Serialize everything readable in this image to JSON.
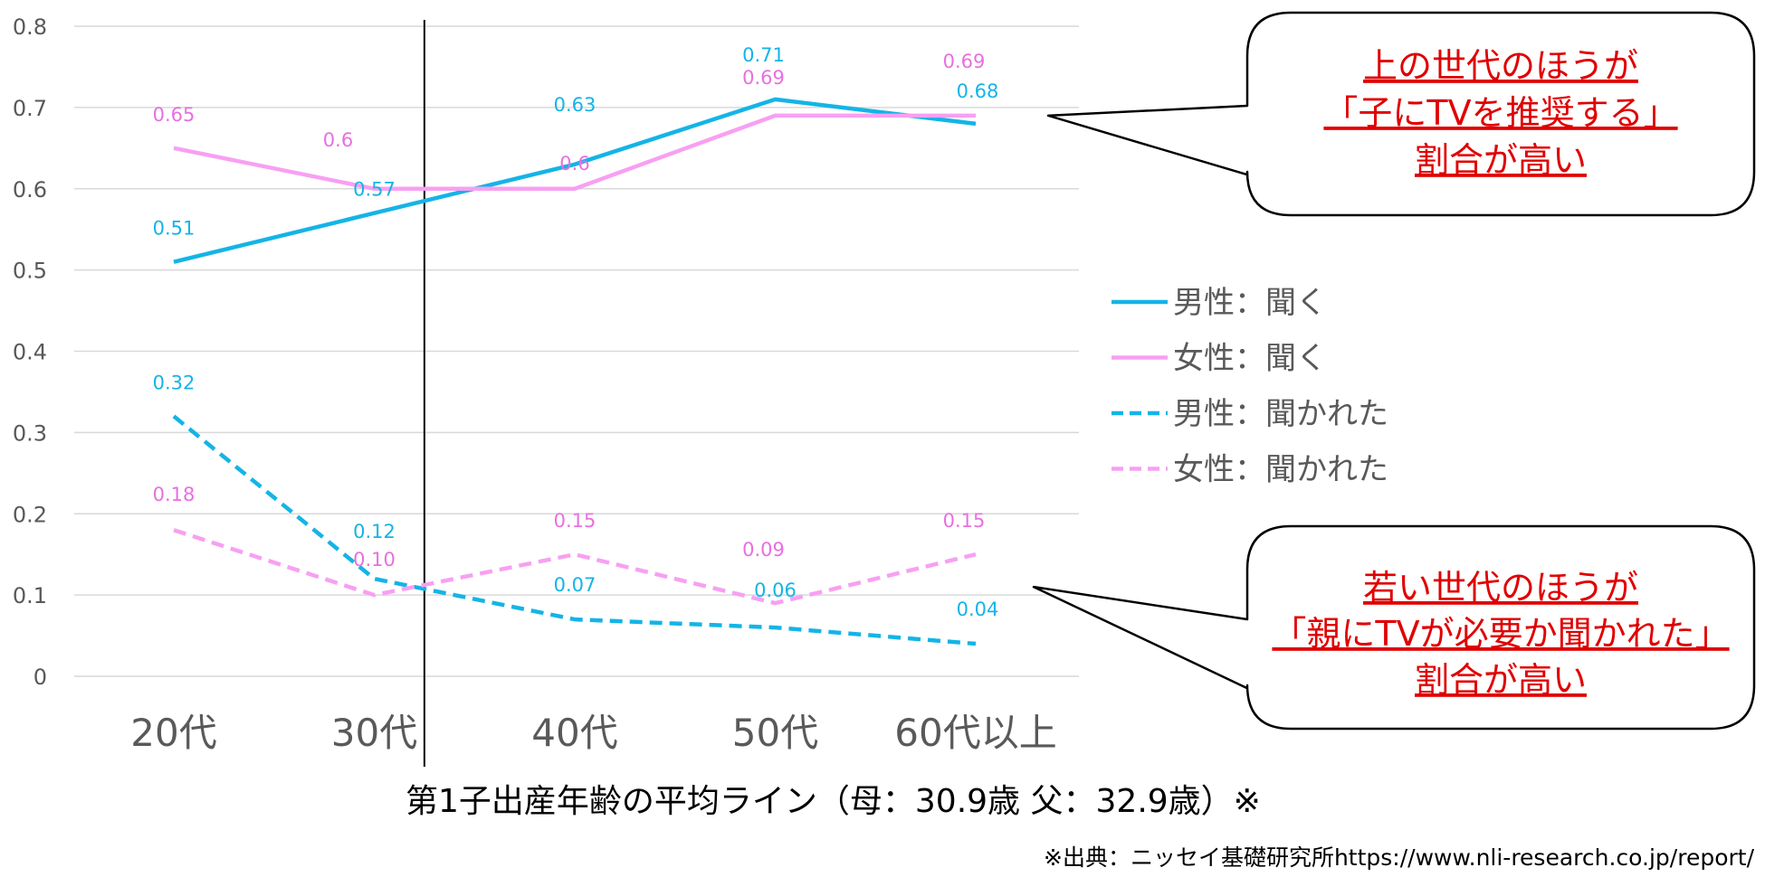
{
  "chart_data": {
    "type": "line",
    "categories": [
      "20代",
      "30代",
      "40代",
      "50代",
      "60代以上"
    ],
    "ylim": [
      0,
      0.8
    ],
    "yticks": [
      "0",
      "0.1",
      "0.2",
      "0.3",
      "0.4",
      "0.5",
      "0.6",
      "0.7",
      "0.8"
    ],
    "grid": true,
    "legend_position": "right",
    "series": [
      {
        "key": "male-ask",
        "name": "男性：聞く",
        "color": "#14b4e6",
        "dashed": false,
        "values": [
          0.51,
          0.57,
          0.63,
          0.71,
          0.68
        ],
        "labels": [
          "0.51",
          "0.57",
          "0.63",
          "0.71",
          "0.68"
        ]
      },
      {
        "key": "female-ask",
        "name": "女性：聞く",
        "color": "#f7a0f2",
        "label_color": "#e86fe0",
        "dashed": false,
        "values": [
          0.65,
          0.6,
          0.6,
          0.69,
          0.69
        ],
        "labels": [
          "0.65",
          "0.6",
          "0.6",
          "0.69",
          "0.69"
        ]
      },
      {
        "key": "male-asked",
        "name": "男性：聞かれた",
        "color": "#14b4e6",
        "dashed": true,
        "values": [
          0.32,
          0.12,
          0.07,
          0.06,
          0.04
        ],
        "labels": [
          "0.32",
          "0.12",
          "0.07",
          "0.06",
          "0.04"
        ]
      },
      {
        "key": "female-asked",
        "name": "女性：聞かれた",
        "color": "#f7a0f2",
        "label_color": "#e86fe0",
        "dashed": true,
        "values": [
          0.18,
          0.1,
          0.15,
          0.09,
          0.15
        ],
        "labels": [
          "0.18",
          "0.10",
          "0.15",
          "0.09",
          "0.15"
        ]
      }
    ],
    "average_line": {
      "category_position": 1.25,
      "caption": "第1子出産年齢の平均ライン（母：30.9歳 父：32.9歳）※"
    },
    "annotations": [
      {
        "key": "upper",
        "lines": [
          "上の世代のほうが",
          "「子にTVを推奨する」",
          "割合が高い"
        ],
        "color": "#e00000",
        "points_to_value": 0.69
      },
      {
        "key": "lower",
        "lines": [
          "若い世代のほうが",
          "「親にTVが必要か聞かれた」",
          "割合が高い"
        ],
        "color": "#e00000",
        "points_to_value": 0.11
      }
    ],
    "source_note": "※出典：ニッセイ基礎研究所https://www.nli-research.co.jp/report/"
  }
}
